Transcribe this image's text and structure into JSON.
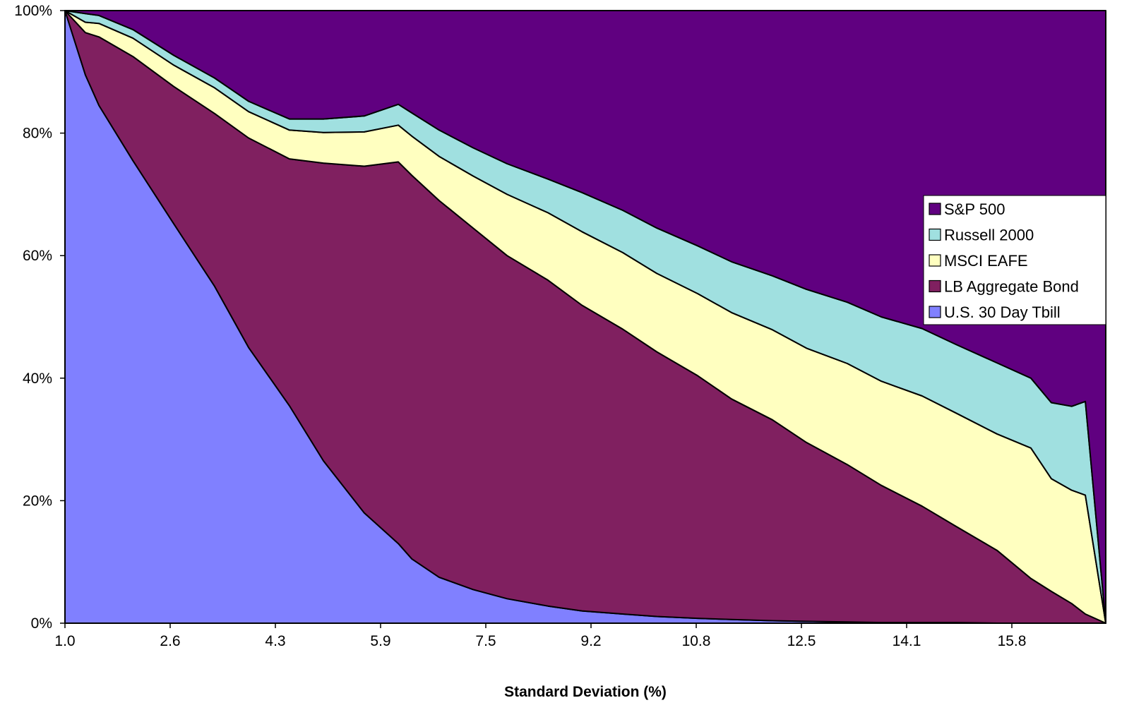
{
  "chart_data": {
    "type": "area",
    "stacked": "percent",
    "title": "",
    "xlabel": "Standard Deviation (%)",
    "ylabel": "",
    "x_tick_labels": [
      "1.0",
      "2.6",
      "4.3",
      "5.9",
      "7.5",
      "9.2",
      "10.8",
      "12.5",
      "14.1",
      "15.8"
    ],
    "y_tick_labels": [
      "0%",
      "20%",
      "40%",
      "60%",
      "80%",
      "100%"
    ],
    "ylim": [
      0,
      100
    ],
    "xlim": [
      1.0,
      16.3
    ],
    "grid": false,
    "legend_position": "right",
    "x": [
      1.0,
      1.3,
      1.5,
      2.0,
      2.6,
      3.2,
      3.7,
      4.3,
      4.8,
      5.4,
      5.9,
      6.1,
      6.5,
      7.0,
      7.5,
      8.1,
      8.6,
      9.2,
      9.7,
      10.3,
      10.8,
      11.4,
      11.9,
      12.5,
      13.0,
      13.6,
      14.1,
      14.7,
      15.2,
      15.5,
      15.8,
      16.0,
      16.3
    ],
    "series": [
      {
        "name": "U.S. 30 Day Tbill",
        "color": "#8080ff",
        "values": [
          100,
          89.5,
          84.5,
          75.5,
          65.2,
          55.0,
          45.0,
          35.5,
          26.5,
          18.0,
          13.0,
          10.5,
          7.5,
          5.5,
          4.0,
          2.8,
          2.0,
          1.5,
          1.1,
          0.8,
          0.6,
          0.4,
          0.3,
          0.2,
          0.1,
          0.1,
          0.1,
          0.0,
          0.0,
          0.0,
          0.0,
          0.0,
          0.0
        ]
      },
      {
        "name": "LB Aggregate Bond",
        "color": "#802060",
        "values": [
          0,
          6.9,
          11.2,
          17.0,
          22.4,
          28.2,
          34.2,
          40.3,
          48.6,
          56.6,
          62.3,
          62.6,
          61.5,
          59.0,
          56.0,
          53.2,
          49.9,
          46.5,
          43.2,
          39.6,
          36.0,
          32.8,
          29.2,
          25.7,
          22.4,
          19.0,
          15.7,
          11.9,
          7.3,
          5.2,
          3.2,
          1.5,
          0.0
        ]
      },
      {
        "name": "MSCI EAFE",
        "color": "#ffffc0",
        "values": [
          0,
          1.7,
          2.2,
          3.0,
          3.5,
          4.2,
          4.3,
          4.7,
          5.0,
          5.6,
          6.0,
          6.4,
          7.2,
          8.5,
          10.0,
          11.0,
          12.0,
          12.5,
          12.8,
          13.4,
          14.1,
          14.7,
          15.4,
          16.5,
          17.0,
          18.0,
          18.5,
          19.0,
          21.3,
          18.4,
          18.5,
          19.4,
          0.0
        ]
      },
      {
        "name": "Russell 2000",
        "color": "#a0e0e0",
        "values": [
          0,
          1.4,
          1.3,
          1.4,
          1.6,
          1.6,
          1.7,
          1.8,
          2.2,
          2.6,
          3.4,
          3.8,
          4.3,
          4.6,
          5.0,
          5.5,
          6.4,
          6.9,
          7.4,
          7.8,
          8.3,
          8.8,
          9.6,
          10.0,
          10.5,
          11.0,
          11.2,
          11.6,
          11.4,
          12.4,
          13.7,
          15.3,
          0.0
        ]
      },
      {
        "name": "S&P 500",
        "color": "#600080",
        "values": [
          0,
          0.5,
          0.8,
          3.1,
          7.3,
          11.0,
          14.8,
          17.7,
          17.7,
          17.2,
          15.3,
          16.7,
          19.5,
          22.4,
          25.0,
          27.5,
          29.7,
          32.6,
          35.5,
          38.4,
          41.0,
          43.3,
          45.5,
          47.6,
          50.0,
          51.9,
          54.5,
          57.5,
          60.0,
          64.0,
          64.6,
          63.8,
          100.0
        ]
      }
    ]
  }
}
